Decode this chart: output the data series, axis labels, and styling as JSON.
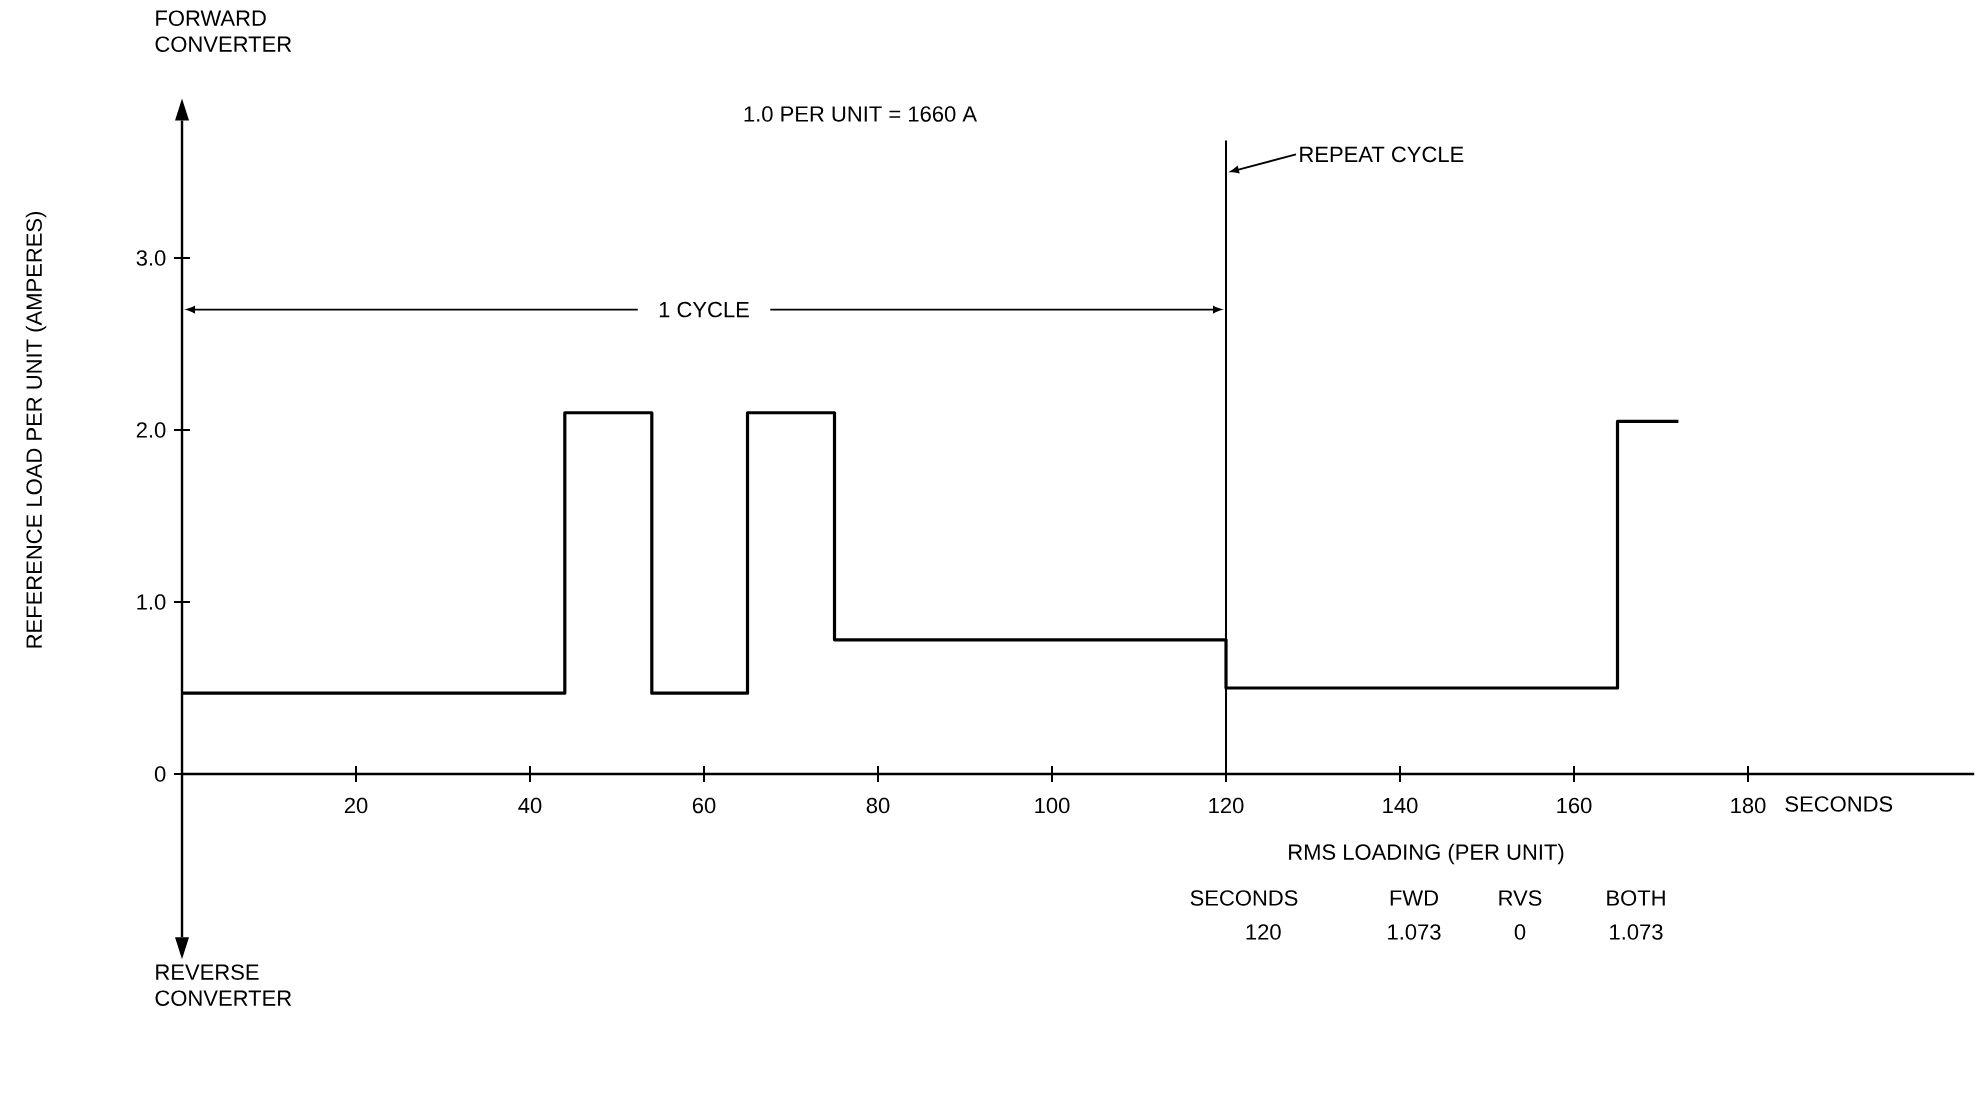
{
  "chart_data": {
    "type": "step",
    "subtitle": "1.0 PER UNIT = 1660 A",
    "xlabel": "SECONDS",
    "ylabel": "REFERENCE LOAD PER UNIT (AMPERES)",
    "x": [
      0,
      44,
      54,
      65,
      75,
      120,
      165,
      172
    ],
    "series": [
      {
        "color": "#000000",
        "values": [
          0.47,
          2.1,
          0.47,
          2.1,
          0.78,
          0.5,
          2.05,
          2.05
        ]
      }
    ],
    "xlim": [
      0,
      206
    ],
    "ylim": [
      -0.95,
      3.8
    ],
    "xticks": [
      20,
      40,
      60,
      80,
      100,
      120,
      140,
      160,
      180
    ],
    "yticks": [
      0,
      {
        "value": 1,
        "label": "1.0"
      },
      {
        "value": 2,
        "label": "2.0"
      },
      {
        "value": 3,
        "label": "3.0"
      }
    ],
    "ref_lines": [
      {
        "axis": "x",
        "value": 120,
        "label": "REPEAT CYCLE"
      }
    ],
    "annotations": [
      "FORWARD CONVERTER",
      "REVERSE CONVERTER",
      {
        "text": "1 CYCLE",
        "x": 120,
        "y": 2.7
      },
      "RMS LOADING (PER UNIT)",
      "SECONDS",
      "FWD",
      "RVS",
      "BOTH",
      "120",
      "1.073",
      "0",
      "1.073"
    ],
    "marker": "none",
    "line_style": "solid"
  }
}
